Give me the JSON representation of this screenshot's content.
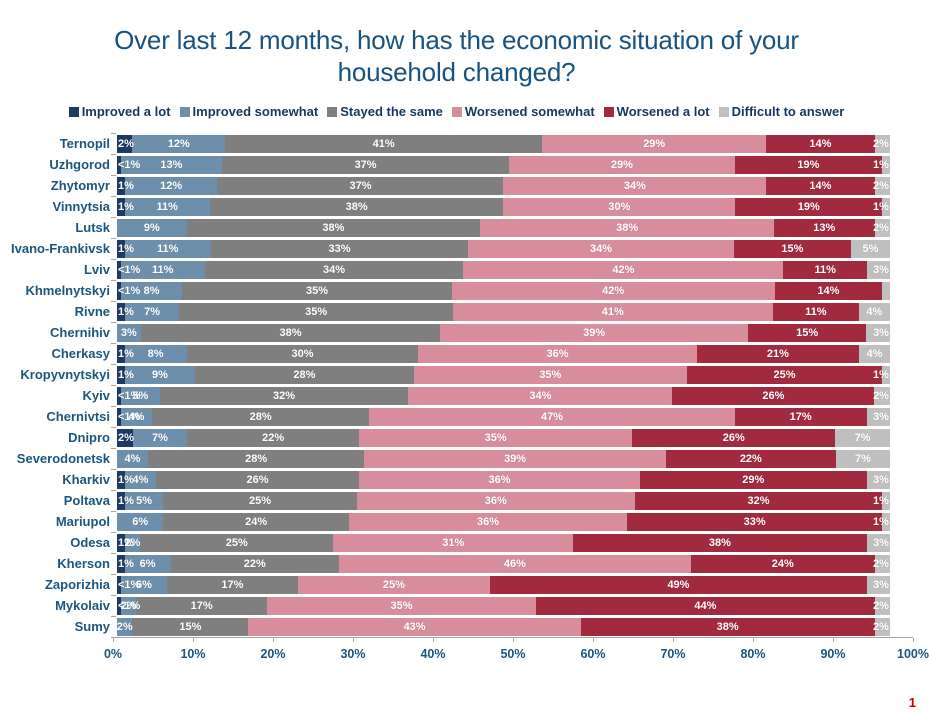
{
  "title": {
    "line1": "Over last 12 months, how has the economic situation of your",
    "line2": "household changed?"
  },
  "page_number": "1",
  "chart_data": {
    "type": "bar",
    "orientation": "horizontal",
    "stacked": true,
    "units": "percent",
    "title": "Over last 12 months, how has the economic situation of your household changed?",
    "legend_position": "top",
    "grid": false,
    "x_axis": {
      "min": 0,
      "max": 100,
      "tick_step": 10,
      "tick_labels": [
        "0%",
        "10%",
        "20%",
        "30%",
        "40%",
        "50%",
        "60%",
        "70%",
        "80%",
        "90%",
        "100%"
      ]
    },
    "categories": [
      "Ternopil",
      "Uzhgorod",
      "Zhytomyr",
      "Vinnytsia",
      "Lutsk",
      "Ivano-Frankivsk",
      "Lviv",
      "Khmelnytskyi",
      "Rivne",
      "Chernihiv",
      "Cherkasy",
      "Kropyvnytskyi",
      "Kyiv",
      "Chernivtsi",
      "Dnipro",
      "Severodonetsk",
      "Kharkiv",
      "Poltava",
      "Mariupol",
      "Odesa",
      "Kherson",
      "Zaporizhia",
      "Mykolaiv",
      "Sumy"
    ],
    "series": [
      {
        "key": "improved-a-lot",
        "name": "Improved a lot",
        "color": "#1F3864",
        "values": [
          2,
          0.5,
          1,
          1,
          0,
          1,
          0.5,
          0.5,
          1,
          0,
          1,
          1,
          0.5,
          0.5,
          2,
          0,
          1,
          1,
          0,
          1,
          1,
          0.5,
          0.5,
          0
        ],
        "labels": [
          "2%",
          "<1%",
          "1%",
          "1%",
          "",
          "1%",
          "<1%",
          "<1%",
          "1%",
          "",
          "1%",
          "1%",
          "<1%",
          "<1%",
          "2%",
          "",
          "1%",
          "1%",
          "",
          "1%",
          "1%",
          "<1%",
          "<1%",
          ""
        ]
      },
      {
        "key": "improved-somewhat",
        "name": "Improved somewhat",
        "color": "#6D8FAC",
        "values": [
          12,
          13,
          12,
          11,
          9,
          11,
          11,
          8,
          7,
          3,
          8,
          9,
          5,
          4,
          7,
          4,
          4,
          5,
          6,
          2,
          6,
          6,
          2,
          2
        ],
        "labels": [
          "12%",
          "13%",
          "12%",
          "11%",
          "9%",
          "11%",
          "11%",
          "8%",
          "7%",
          "3%",
          "8%",
          "9%",
          "5%",
          "4%",
          "7%",
          "4%",
          "4%",
          "5%",
          "6%",
          "2%",
          "6%",
          "6%",
          "2%",
          "2%"
        ]
      },
      {
        "key": "stayed-the-same",
        "name": "Stayed the same",
        "color": "#7F7F7F",
        "values": [
          41,
          37,
          37,
          38,
          38,
          33,
          34,
          35,
          35,
          38,
          30,
          28,
          32,
          28,
          22,
          28,
          26,
          25,
          24,
          25,
          22,
          17,
          17,
          15
        ],
        "labels": [
          "41%",
          "37%",
          "37%",
          "38%",
          "38%",
          "33%",
          "34%",
          "35%",
          "35%",
          "38%",
          "30%",
          "28%",
          "32%",
          "28%",
          "22%",
          "28%",
          "26%",
          "25%",
          "24%",
          "25%",
          "22%",
          "17%",
          "17%",
          "15%"
        ]
      },
      {
        "key": "worsened-somewhat",
        "name": "Worsened somewhat",
        "color": "#D78D9B",
        "values": [
          29,
          29,
          34,
          30,
          38,
          34,
          42,
          42,
          41,
          39,
          36,
          35,
          34,
          47,
          35,
          39,
          36,
          36,
          36,
          31,
          46,
          25,
          35,
          43
        ],
        "labels": [
          "29%",
          "29%",
          "34%",
          "30%",
          "38%",
          "34%",
          "42%",
          "42%",
          "41%",
          "39%",
          "36%",
          "35%",
          "34%",
          "47%",
          "35%",
          "39%",
          "36%",
          "36%",
          "36%",
          "31%",
          "46%",
          "25%",
          "35%",
          "43%"
        ]
      },
      {
        "key": "worsened-a-lot",
        "name": "Worsened a lot",
        "color": "#A12A3F",
        "values": [
          14,
          19,
          14,
          19,
          13,
          15,
          11,
          14,
          11,
          15,
          21,
          25,
          26,
          17,
          26,
          22,
          29,
          32,
          33,
          38,
          24,
          49,
          44,
          38
        ],
        "labels": [
          "14%",
          "19%",
          "14%",
          "19%",
          "13%",
          "15%",
          "11%",
          "14%",
          "11%",
          "15%",
          "21%",
          "25%",
          "26%",
          "17%",
          "26%",
          "22%",
          "29%",
          "32%",
          "33%",
          "38%",
          "24%",
          "49%",
          "44%",
          "38%"
        ]
      },
      {
        "key": "difficult-to-answer",
        "name": "Difficult to answer",
        "color": "#BFBFBF",
        "values": [
          2,
          1,
          2,
          1,
          2,
          5,
          3,
          1,
          4,
          3,
          4,
          1,
          2,
          3,
          7,
          7,
          3,
          1,
          1,
          3,
          2,
          3,
          2,
          2
        ],
        "labels": [
          "2%",
          "1%",
          "2%",
          "1%",
          "2%",
          "5%",
          "3%",
          "",
          "4%",
          "3%",
          "4%",
          "1%",
          "2%",
          "3%",
          "7%",
          "7%",
          "3%",
          "1%",
          "1%",
          "3%",
          "2%",
          "3%",
          "2%",
          "2%"
        ]
      }
    ]
  }
}
